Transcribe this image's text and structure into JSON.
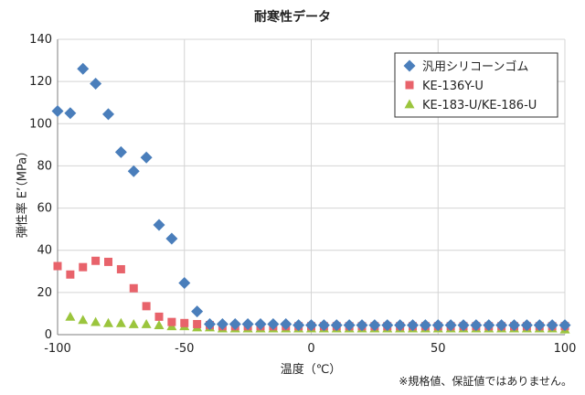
{
  "chart_data": {
    "type": "scatter",
    "title": "耐寒性データ",
    "xlabel": "温度（℃）",
    "ylabel": "弾性率 E’（MPa）",
    "xlim": [
      -100,
      100
    ],
    "ylim": [
      0,
      140
    ],
    "x_ticks": [
      -100,
      -50,
      0,
      50,
      100
    ],
    "y_ticks": [
      0,
      20,
      40,
      60,
      80,
      100,
      120,
      140
    ],
    "grid": true,
    "legend_position": "top-right",
    "note": "※規格値、保証値ではありません。",
    "series": [
      {
        "name": "汎用シリコーンゴム",
        "marker": "diamond",
        "color": "#4a7ebb",
        "points": [
          [
            -100,
            106
          ],
          [
            -95,
            105
          ],
          [
            -90,
            126
          ],
          [
            -85,
            119
          ],
          [
            -80,
            104.5
          ],
          [
            -75,
            86.5
          ],
          [
            -70,
            77.5
          ],
          [
            -65,
            84
          ],
          [
            -60,
            52
          ],
          [
            -55,
            45.5
          ],
          [
            -50,
            24.5
          ],
          [
            -45,
            11
          ],
          [
            -40,
            5
          ],
          [
            -35,
            5
          ],
          [
            -30,
            5
          ],
          [
            -25,
            5
          ],
          [
            -20,
            5
          ],
          [
            -15,
            5
          ],
          [
            -10,
            5
          ],
          [
            -5,
            4.5
          ],
          [
            0,
            4.5
          ],
          [
            5,
            4.5
          ],
          [
            10,
            4.5
          ],
          [
            15,
            4.5
          ],
          [
            20,
            4.5
          ],
          [
            25,
            4.5
          ],
          [
            30,
            4.5
          ],
          [
            35,
            4.5
          ],
          [
            40,
            4.5
          ],
          [
            45,
            4.5
          ],
          [
            50,
            4.5
          ],
          [
            55,
            4.5
          ],
          [
            60,
            4.5
          ],
          [
            65,
            4.5
          ],
          [
            70,
            4.5
          ],
          [
            75,
            4.5
          ],
          [
            80,
            4.5
          ],
          [
            85,
            4.5
          ],
          [
            90,
            4.5
          ],
          [
            95,
            4.5
          ],
          [
            100,
            4.5
          ]
        ]
      },
      {
        "name": "KE-136Y-U",
        "marker": "square",
        "color": "#e8636b",
        "points": [
          [
            -100,
            32.5
          ],
          [
            -95,
            28.5
          ],
          [
            -90,
            32
          ],
          [
            -85,
            35
          ],
          [
            -80,
            34.5
          ],
          [
            -75,
            31
          ],
          [
            -70,
            22
          ],
          [
            -65,
            13.5
          ],
          [
            -60,
            8.5
          ],
          [
            -55,
            6
          ],
          [
            -50,
            5.5
          ],
          [
            -45,
            5
          ],
          [
            -40,
            4.5
          ],
          [
            -35,
            4
          ],
          [
            -30,
            4
          ],
          [
            -25,
            4
          ],
          [
            -20,
            4
          ],
          [
            -15,
            4
          ],
          [
            -10,
            4
          ],
          [
            -5,
            4
          ],
          [
            0,
            4
          ],
          [
            5,
            4
          ],
          [
            10,
            4
          ],
          [
            15,
            4
          ],
          [
            20,
            4
          ],
          [
            25,
            4
          ],
          [
            30,
            4
          ],
          [
            35,
            4
          ],
          [
            40,
            4
          ],
          [
            45,
            4
          ],
          [
            50,
            4
          ],
          [
            55,
            4
          ],
          [
            60,
            4
          ],
          [
            65,
            4
          ],
          [
            70,
            4
          ],
          [
            75,
            4
          ],
          [
            80,
            4
          ],
          [
            85,
            4
          ],
          [
            90,
            4
          ],
          [
            95,
            4
          ],
          [
            100,
            4
          ]
        ]
      },
      {
        "name": "KE-183-U/KE-186-U",
        "marker": "triangle",
        "color": "#9bc53d",
        "points": [
          [
            -95,
            8.5
          ],
          [
            -90,
            7
          ],
          [
            -85,
            6
          ],
          [
            -80,
            5.5
          ],
          [
            -75,
            5.5
          ],
          [
            -70,
            5
          ],
          [
            -65,
            5
          ],
          [
            -60,
            4.5
          ],
          [
            -55,
            4
          ],
          [
            -50,
            4
          ],
          [
            -45,
            3.5
          ],
          [
            -40,
            3.5
          ],
          [
            -35,
            3
          ],
          [
            -30,
            3
          ],
          [
            -25,
            3
          ],
          [
            -20,
            3
          ],
          [
            -15,
            3
          ],
          [
            -10,
            3
          ],
          [
            -5,
            3
          ],
          [
            0,
            3
          ],
          [
            5,
            3
          ],
          [
            10,
            3
          ],
          [
            15,
            3
          ],
          [
            20,
            3
          ],
          [
            25,
            3
          ],
          [
            30,
            3
          ],
          [
            35,
            3
          ],
          [
            40,
            3
          ],
          [
            45,
            3
          ],
          [
            50,
            3
          ],
          [
            55,
            3
          ],
          [
            60,
            3
          ],
          [
            65,
            3
          ],
          [
            70,
            3
          ],
          [
            75,
            3
          ],
          [
            80,
            3
          ],
          [
            85,
            3
          ],
          [
            90,
            3
          ],
          [
            95,
            3
          ],
          [
            100,
            2.5
          ]
        ]
      }
    ]
  }
}
